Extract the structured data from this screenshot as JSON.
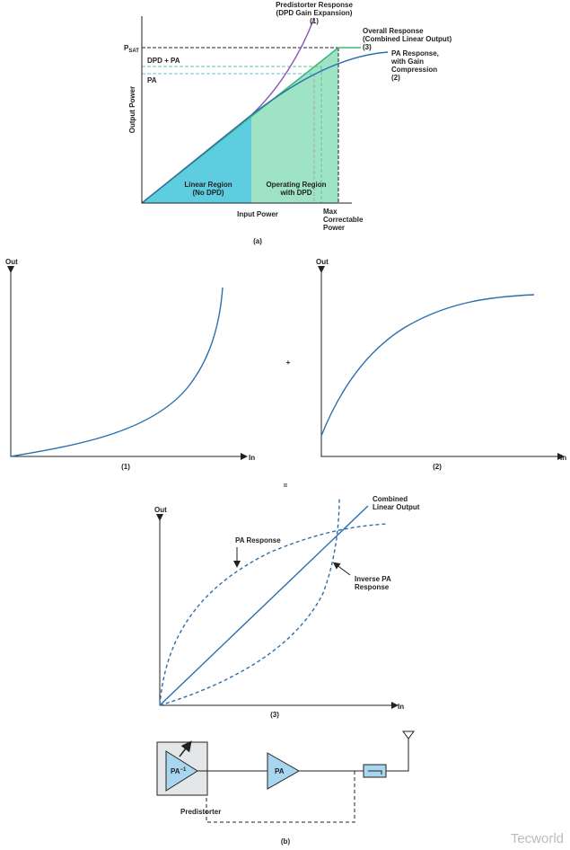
{
  "panel_a": {
    "labels": {
      "predistorter": [
        "Predistorter Response",
        "(DPD Gain Expansion)",
        "(1)"
      ],
      "overall": [
        "Overall Response",
        "(Combined Linear Output)",
        "(3)"
      ],
      "pa": [
        "PA Response,",
        "with Gain",
        "Compression",
        "(2)"
      ],
      "psat": "P",
      "psat_sub": "SAT",
      "dpd_pa": "DPD + PA",
      "pa_level": "PA",
      "y_axis": "Output Power",
      "x_axis": "Input Power",
      "linear_region": [
        "Linear Region",
        "(No DPD)"
      ],
      "operating_region": [
        "Operating Region",
        "with DPD"
      ],
      "max": [
        "Max",
        "Correctable",
        "Power"
      ]
    },
    "caption": "(a)"
  },
  "panel_1": {
    "y_axis": "Out",
    "x_axis": "In",
    "caption": "(1)"
  },
  "operator_plus": "+",
  "panel_2": {
    "y_axis": "Out",
    "x_axis": "In",
    "caption": "(2)"
  },
  "operator_equals": "=",
  "panel_3": {
    "y_axis": "Out",
    "x_axis": "In",
    "pa_response": "PA Response",
    "combined": [
      "Combined",
      "Linear Output"
    ],
    "inverse": [
      "Inverse PA",
      "Response"
    ],
    "caption": "(3)"
  },
  "panel_b": {
    "predistorter_block": "PA",
    "predistorter_sup": "−1",
    "pa_block": "PA",
    "predistorter_label": "Predistorter",
    "caption": "(b)"
  },
  "watermark": "Tecworld"
}
